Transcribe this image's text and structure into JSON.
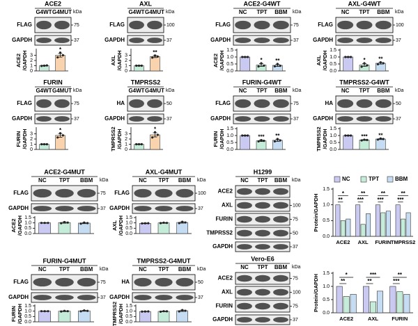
{
  "blots": [
    {
      "title": "ACE2",
      "lanes": [
        "G4WT",
        "G4MUT"
      ],
      "kda_label": "kDa",
      "rows": [
        {
          "label": "FLAG",
          "kda": 75
        },
        {
          "label": "GAPDH",
          "kda": 37
        }
      ]
    },
    {
      "title": "AXL",
      "lanes": [
        "G4WT",
        "G4MUT"
      ],
      "kda_label": "kDa",
      "rows": [
        {
          "label": "FLAG",
          "kda": 100
        },
        {
          "label": "GAPDH",
          "kda": 37
        }
      ]
    },
    {
      "title": "ACE2-G4WT",
      "lanes": [
        "NC",
        "TPT",
        "BBM"
      ],
      "kda_label": "kDa",
      "rows": [
        {
          "label": "FLAG",
          "kda": 75
        },
        {
          "label": "GAPDH",
          "kda": 37
        }
      ]
    },
    {
      "title": "AXL-G4WT",
      "lanes": [
        "NC",
        "TPT",
        "BBM"
      ],
      "kda_label": "kDa",
      "rows": [
        {
          "label": "FLAG",
          "kda": 100
        },
        {
          "label": "GAPDH",
          "kda": 37
        }
      ]
    },
    {
      "title": "FURIN",
      "lanes": [
        "G4WT",
        "G4MUT"
      ],
      "kda_label": "kDa",
      "rows": [
        {
          "label": "FLAG",
          "kda": 75
        },
        {
          "label": "GAPDH",
          "kda": 37
        }
      ]
    },
    {
      "title": "TMPRSS2",
      "lanes": [
        "G4WT",
        "G4MUT"
      ],
      "kda_label": "kDa",
      "rows": [
        {
          "label": "HA",
          "kda": 50
        },
        {
          "label": "GAPDH",
          "kda": 37
        }
      ]
    },
    {
      "title": "FURIN-G4WT",
      "lanes": [
        "NC",
        "TPT",
        "BBM"
      ],
      "kda_label": "kDa",
      "rows": [
        {
          "label": "FLAG",
          "kda": 75
        },
        {
          "label": "GAPDH",
          "kda": 37
        }
      ]
    },
    {
      "title": "TMPRSS2-G4WT",
      "lanes": [
        "NC",
        "TPT",
        "BBM"
      ],
      "kda_label": "kDa",
      "rows": [
        {
          "label": "HA",
          "kda": 50
        },
        {
          "label": "GAPDH",
          "kda": 37
        }
      ]
    },
    {
      "title": "ACE2-G4MUT",
      "lanes": [
        "NC",
        "TPT",
        "BBM"
      ],
      "kda_label": "kDa",
      "rows": [
        {
          "label": "FLAG",
          "kda": 75
        },
        {
          "label": "GAPDH",
          "kda": 37
        }
      ]
    },
    {
      "title": "AXL-G4MUT",
      "lanes": [
        "NC",
        "TPT",
        "BBM"
      ],
      "kda_label": "kDa",
      "rows": [
        {
          "label": "FLAG",
          "kda": 100
        },
        {
          "label": "GAPDH",
          "kda": 37
        }
      ]
    },
    {
      "title": "H1299",
      "lanes": [
        "NC",
        "TPT",
        "BBM"
      ],
      "kda_label": "kDa",
      "rows": [
        {
          "label": "ACE2"
        },
        {
          "label": "AXL",
          "kda": 100
        },
        {
          "label": "FURIN",
          "kda": 75
        },
        {
          "label": "TMPRSS2",
          "kda": 50
        },
        {
          "label": "GAPDH",
          "kda": 37
        }
      ]
    },
    {
      "title": "FURIN-G4MUT",
      "lanes": [
        "NC",
        "TPT",
        "BBM"
      ],
      "kda_label": "kDa",
      "rows": [
        {
          "label": "FLAG",
          "kda": 75
        },
        {
          "label": "GAPDH",
          "kda": 37
        }
      ]
    },
    {
      "title": "TMPRSS2-G4MUT",
      "lanes": [
        "NC",
        "TPT",
        "BBM"
      ],
      "kda_label": "kDa",
      "rows": [
        {
          "label": "HA",
          "kda": 50
        },
        {
          "label": "GAPDH",
          "kda": 37
        }
      ]
    },
    {
      "title": "Vero-E6",
      "lanes": [
        "NC",
        "TPT",
        "BBM"
      ],
      "kda_label": "kDa",
      "rows": [
        {
          "label": "ACE2",
          "kda": 75
        },
        {
          "label": "AXL",
          "kda": 100
        },
        {
          "label": "FURIN",
          "kda": 75
        },
        {
          "label": "GAPDH",
          "kda": 37
        }
      ]
    }
  ],
  "chart_data": [
    {
      "type": "bar",
      "ylabel": [
        "ACE2",
        "/GAPDH"
      ],
      "values": [
        1,
        3
      ],
      "errors": [
        0.05,
        0.35
      ],
      "points": [
        [
          0.95,
          1,
          1.05
        ],
        [
          2.6,
          3.5,
          3
        ]
      ],
      "colors": [
        "#c5ecd9",
        "#f9d3ad"
      ],
      "significance": [
        null,
        "*"
      ],
      "ylim": [
        0,
        4
      ],
      "yticks": [
        0,
        1,
        2,
        3
      ]
    },
    {
      "type": "bar",
      "ylabel": [
        "AXL",
        "/GAPDH"
      ],
      "values": [
        1,
        2.75
      ],
      "errors": [
        0.05,
        0.2
      ],
      "points": [
        [
          1,
          1,
          1
        ],
        [
          2.55,
          2.95,
          2.75
        ]
      ],
      "colors": [
        "#c5ecd9",
        "#f9d3ad"
      ],
      "significance": [
        null,
        "**"
      ],
      "ylim": [
        0,
        4
      ],
      "yticks": [
        0,
        1,
        2,
        3
      ]
    },
    {
      "type": "bar",
      "ylabel": [
        "ACE2",
        "/GAPDH"
      ],
      "values": [
        1,
        0.42,
        0.4
      ],
      "errors": [
        0.02,
        0.1,
        0.08
      ],
      "points": [
        [
          1,
          1,
          1
        ],
        [
          0.32,
          0.55,
          0.38
        ],
        [
          0.33,
          0.5,
          0.37
        ]
      ],
      "colors": [
        "#c9c9f2",
        "#c5ecd9",
        "#c6dcf2"
      ],
      "significance": [
        null,
        "*",
        "**"
      ],
      "ylim": [
        0,
        1.5
      ],
      "yticks": [
        {
          "value": 0,
          "label": "0.0"
        },
        0.5,
        {
          "value": 1,
          "label": "1.0"
        },
        1.5
      ]
    },
    {
      "type": "bar",
      "ylabel": [
        "AXL",
        "/GAPDH"
      ],
      "values": [
        1,
        0.42,
        0.55
      ],
      "errors": [
        0.02,
        0.1,
        0.06
      ],
      "points": [
        [
          1,
          1,
          1
        ],
        [
          0.3,
          0.55,
          0.4
        ],
        [
          0.48,
          0.62,
          0.55
        ]
      ],
      "colors": [
        "#c9c9f2",
        "#c5ecd9",
        "#c6dcf2"
      ],
      "significance": [
        null,
        "*",
        "**"
      ],
      "ylim": [
        0,
        1.5
      ],
      "yticks": [
        {
          "value": 0,
          "label": "0.0"
        },
        0.5,
        {
          "value": 1,
          "label": "1.0"
        },
        1.5
      ]
    },
    {
      "type": "bar",
      "ylabel": [
        "FURIN",
        "/GAPDH"
      ],
      "values": [
        1,
        2.7
      ],
      "errors": [
        0.05,
        0.35
      ],
      "points": [
        [
          1,
          1,
          1
        ],
        [
          2.3,
          3.1,
          2.7
        ]
      ],
      "colors": [
        "#c5ecd9",
        "#f9d3ad"
      ],
      "significance": [
        null,
        "*"
      ],
      "ylim": [
        0,
        4
      ],
      "yticks": [
        0,
        1,
        2,
        3
      ]
    },
    {
      "type": "bar",
      "ylabel": [
        "TMPRSS2",
        "/GAPDH"
      ],
      "values": [
        1,
        2.8
      ],
      "errors": [
        0.05,
        0.4
      ],
      "points": [
        [
          1,
          1,
          1
        ],
        [
          2.3,
          3.3,
          2.8
        ]
      ],
      "colors": [
        "#c5ecd9",
        "#f9d3ad"
      ],
      "significance": [
        null,
        "*"
      ],
      "ylim": [
        0,
        4
      ],
      "yticks": [
        0,
        1,
        2,
        3
      ]
    },
    {
      "type": "bar",
      "ylabel": [
        "FURIN",
        "/GAPDH"
      ],
      "values": [
        1,
        0.62,
        0.66
      ],
      "errors": [
        0.02,
        0.05,
        0.08
      ],
      "points": [
        [
          1,
          1,
          1
        ],
        [
          0.58,
          0.67,
          0.62
        ],
        [
          0.58,
          0.75,
          0.65
        ]
      ],
      "colors": [
        "#c9c9f2",
        "#c5ecd9",
        "#c6dcf2"
      ],
      "significance": [
        null,
        "***",
        "**"
      ],
      "ylim": [
        0,
        1.5
      ],
      "yticks": [
        {
          "value": 0,
          "label": "0.0"
        },
        0.5,
        {
          "value": 1,
          "label": "1.0"
        },
        1.5
      ]
    },
    {
      "type": "bar",
      "ylabel": [
        "TMPRSS2",
        "/GAPDH"
      ],
      "values": [
        1,
        0.68,
        0.75
      ],
      "errors": [
        0.02,
        0.03,
        0.04
      ],
      "points": [
        [
          1,
          1,
          1
        ],
        [
          0.65,
          0.7,
          0.68
        ],
        [
          0.71,
          0.79,
          0.75
        ]
      ],
      "colors": [
        "#c9c9f2",
        "#c5ecd9",
        "#c6dcf2"
      ],
      "significance": [
        null,
        "***",
        "**"
      ],
      "ylim": [
        0,
        1.5
      ],
      "yticks": [
        {
          "value": 0,
          "label": "0.0"
        },
        0.5,
        {
          "value": 1,
          "label": "1.0"
        },
        1.5
      ]
    },
    {
      "type": "bar",
      "ylabel": [
        "ACE2",
        "/GAPDH"
      ],
      "values": [
        1,
        1.03,
        0.98
      ],
      "errors": [
        0.02,
        0.06,
        0.05
      ],
      "points": [
        [
          1,
          1,
          1
        ],
        [
          0.97,
          1.08,
          1.03
        ],
        [
          0.93,
          1.03,
          0.98
        ]
      ],
      "colors": [
        "#c9c9f2",
        "#c5ecd9",
        "#c6dcf2"
      ],
      "ylim": [
        0,
        1.5
      ],
      "yticks": [
        {
          "value": 0,
          "label": "0.0"
        },
        0.5,
        {
          "value": 1,
          "label": "1.0"
        },
        1.5
      ]
    },
    {
      "type": "bar",
      "ylabel": [
        "AXL",
        "/GAPDH"
      ],
      "values": [
        0.96,
        1,
        1.04
      ],
      "errors": [
        0.03,
        0.03,
        0.06
      ],
      "points": [
        [
          0.95,
          0.96,
          0.97
        ],
        [
          0.98,
          1.02,
          1
        ],
        [
          0.98,
          1.1,
          1.04
        ]
      ],
      "colors": [
        "#c9c9f2",
        "#c5ecd9",
        "#c6dcf2"
      ],
      "ylim": [
        0,
        1.5
      ],
      "yticks": [
        {
          "value": 0,
          "label": "0.0"
        },
        0.5,
        {
          "value": 1,
          "label": "1.0"
        },
        1.5
      ]
    },
    {
      "type": "bar",
      "ylabel": "Protein/GAPDH",
      "categories": [
        "ACE2",
        "AXL",
        "FURIN",
        "TMPRSS2"
      ],
      "series": [
        {
          "name": "NC",
          "color": "#c9c9f2",
          "values": [
            1,
            1,
            1,
            1
          ]
        },
        {
          "name": "TPT",
          "color": "#c5ecd9",
          "values": [
            0.5,
            0.38,
            0.75,
            0.55
          ]
        },
        {
          "name": "BBM",
          "color": "#c6dcf2",
          "values": [
            0.55,
            0.72,
            0.8,
            0.75
          ]
        }
      ],
      "significance": [
        [
          "*",
          "**"
        ],
        [
          "**",
          "***"
        ],
        [
          "**",
          "***"
        ],
        [
          "**",
          "***"
        ]
      ],
      "legend": "top",
      "ylim": [
        0,
        1.5
      ],
      "yticks": [
        {
          "value": 0,
          "label": "0.0"
        },
        0.5,
        {
          "value": 1,
          "label": "1.0"
        },
        1.5
      ]
    },
    {
      "type": "bar",
      "ylabel": [
        "FURIN",
        "/GAPDH"
      ],
      "values": [
        1,
        1,
        1.03
      ],
      "errors": [
        0.02,
        0.04,
        0.04
      ],
      "points": [
        [
          1,
          1,
          1
        ],
        [
          0.97,
          1.03,
          1
        ],
        [
          0.99,
          1.07,
          1.03
        ]
      ],
      "colors": [
        "#c9c9f2",
        "#c5ecd9",
        "#c6dcf2"
      ],
      "ylim": [
        0,
        1.5
      ],
      "yticks": [
        {
          "value": 0,
          "label": "0.0"
        },
        0.5,
        {
          "value": 1,
          "label": "1.0"
        },
        1.5
      ]
    },
    {
      "type": "bar",
      "ylabel": [
        "TMPRSS2",
        "/GAPDH"
      ],
      "values": [
        0.97,
        0.98,
        1.04
      ],
      "errors": [
        0.02,
        0.03,
        0.06
      ],
      "points": [
        [
          0.96,
          0.97,
          0.98
        ],
        [
          0.95,
          1,
          0.99
        ],
        [
          0.98,
          1.1,
          1.04
        ]
      ],
      "colors": [
        "#c9c9f2",
        "#c5ecd9",
        "#c6dcf2"
      ],
      "ylim": [
        0,
        1.5
      ],
      "yticks": [
        {
          "value": 0,
          "label": "0.0"
        },
        0.5,
        {
          "value": 1,
          "label": "1.0"
        },
        1.5
      ]
    },
    {
      "type": "bar",
      "ylabel": "Protein/GAPDH",
      "categories": [
        "ACE2",
        "AXL",
        "FURIN"
      ],
      "series": [
        {
          "color": "#c9c9f2",
          "values": [
            1,
            1,
            1
          ]
        },
        {
          "color": "#c5ecd9",
          "values": [
            0.62,
            0.42,
            0.8
          ]
        },
        {
          "color": "#c6dcf2",
          "values": [
            0.7,
            0.82,
            0.7
          ]
        }
      ],
      "significance": [
        [
          "*",
          "**"
        ],
        [
          "***",
          "**"
        ],
        [
          "**",
          "***"
        ]
      ],
      "ylim": [
        0,
        1.5
      ],
      "yticks": [
        {
          "value": 0,
          "label": "0.0"
        },
        0.5,
        {
          "value": 1,
          "label": "1.0"
        },
        1.5
      ]
    }
  ]
}
